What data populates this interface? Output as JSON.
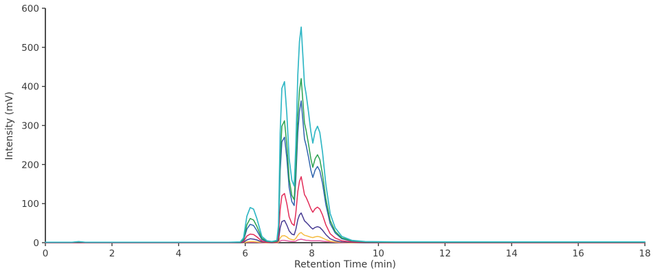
{
  "figure": {
    "background": "#ffffff",
    "axis_color": "#3a3a3a",
    "text_color": "#3a3a3a"
  },
  "chart_data": {
    "type": "line",
    "title": "",
    "xlabel": "Retention Time (min)",
    "ylabel": "Intensity (mV)",
    "xlim": [
      0,
      18
    ],
    "ylim": [
      0,
      600
    ],
    "xticks": [
      0,
      2,
      4,
      6,
      8,
      10,
      12,
      14,
      16,
      18
    ],
    "yticks": [
      0,
      100,
      200,
      300,
      400,
      500,
      600
    ],
    "grid": false,
    "legend": "none",
    "x": [
      0,
      0.8,
      1.0,
      1.2,
      3,
      5.5,
      5.85,
      5.95,
      6.05,
      6.15,
      6.25,
      6.35,
      6.5,
      6.65,
      6.8,
      6.95,
      7.0,
      7.05,
      7.1,
      7.18,
      7.25,
      7.32,
      7.4,
      7.47,
      7.52,
      7.58,
      7.63,
      7.68,
      7.73,
      7.78,
      7.83,
      7.9,
      7.97,
      8.03,
      8.1,
      8.17,
      8.24,
      8.32,
      8.42,
      8.55,
      8.7,
      8.9,
      9.2,
      9.6,
      10.5,
      12,
      15,
      18
    ],
    "series": [
      {
        "name": "teal",
        "color": "#31b7c5",
        "values": [
          1,
          1,
          3,
          1,
          1,
          1,
          2,
          12,
          68,
          90,
          86,
          62,
          16,
          5,
          3,
          6,
          45,
          280,
          395,
          412,
          330,
          215,
          160,
          145,
          250,
          430,
          515,
          552,
          480,
          405,
          380,
          335,
          285,
          255,
          285,
          298,
          282,
          232,
          150,
          75,
          38,
          16,
          6,
          3,
          2,
          2,
          2,
          2
        ]
      },
      {
        "name": "green",
        "color": "#2aa14e",
        "values": [
          1,
          1,
          2,
          1,
          1,
          1,
          1,
          8,
          46,
          62,
          58,
          42,
          11,
          4,
          2,
          4,
          34,
          212,
          298,
          312,
          250,
          163,
          121,
          110,
          189,
          325,
          389,
          420,
          363,
          306,
          287,
          253,
          215,
          193,
          215,
          225,
          213,
          175,
          113,
          57,
          29,
          12,
          5,
          2,
          1,
          1,
          1,
          1
        ]
      },
      {
        "name": "blue",
        "color": "#2e63ad",
        "values": [
          1,
          1,
          2,
          1,
          1,
          1,
          1,
          6,
          35,
          47,
          44,
          31,
          8,
          3,
          2,
          3,
          28,
          183,
          258,
          270,
          216,
          141,
          105,
          95,
          163,
          281,
          337,
          363,
          314,
          265,
          249,
          219,
          186,
          167,
          186,
          195,
          184,
          152,
          98,
          49,
          25,
          10,
          4,
          2,
          1,
          1,
          1,
          1
        ]
      },
      {
        "name": "red",
        "color": "#e22b57",
        "values": [
          0,
          0,
          1,
          0,
          0,
          0,
          1,
          3,
          17,
          22,
          21,
          15,
          4,
          1,
          1,
          1,
          13,
          85,
          120,
          126,
          100,
          66,
          49,
          44,
          76,
          131,
          157,
          169,
          146,
          123,
          116,
          102,
          87,
          78,
          87,
          91,
          86,
          71,
          46,
          23,
          12,
          5,
          2,
          1,
          0,
          0,
          0,
          0
        ]
      },
      {
        "name": "purple",
        "color": "#463a92",
        "values": [
          0,
          0,
          0,
          0,
          0,
          0,
          0,
          1,
          7,
          10,
          9,
          7,
          2,
          1,
          0,
          1,
          6,
          38,
          54,
          57,
          45,
          30,
          22,
          20,
          34,
          59,
          71,
          76,
          66,
          56,
          52,
          46,
          39,
          35,
          39,
          41,
          39,
          32,
          21,
          10,
          5,
          2,
          1,
          0,
          0,
          0,
          0,
          0
        ]
      },
      {
        "name": "yellow",
        "color": "#f5bc42",
        "values": [
          0,
          0,
          0,
          0,
          0,
          0,
          0,
          0,
          2,
          3,
          3,
          2,
          1,
          0,
          0,
          0,
          2,
          12,
          17,
          18,
          15,
          10,
          8,
          7,
          11,
          19,
          24,
          26,
          22,
          19,
          18,
          16,
          14,
          13,
          15,
          16,
          15,
          12,
          8,
          4,
          2,
          1,
          0,
          0,
          0,
          0,
          0,
          0
        ]
      },
      {
        "name": "pink",
        "color": "#e1569d",
        "values": [
          0,
          0,
          0,
          0,
          0,
          0,
          0,
          0,
          1,
          1,
          1,
          1,
          0,
          0,
          0,
          0,
          1,
          4,
          6,
          6,
          5,
          4,
          3,
          3,
          4,
          7,
          8,
          9,
          8,
          7,
          6,
          6,
          5,
          5,
          5,
          5,
          5,
          4,
          3,
          2,
          1,
          0,
          0,
          0,
          0,
          0,
          0,
          0
        ]
      }
    ]
  }
}
